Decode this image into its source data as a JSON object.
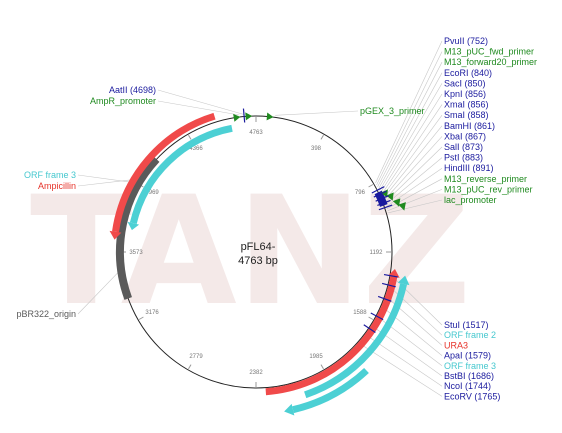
{
  "watermark": "TANZ",
  "plasmid": {
    "name": "pFL64-",
    "size": "4763 bp"
  },
  "colors": {
    "blue": "#1a1a9e",
    "green": "#1f8a1f",
    "red": "#e6332a",
    "cyan": "#46c8cf",
    "gray": "#5a5a5a",
    "arrow_red": "#f04a4a",
    "arrow_cyan": "#4cd0d4"
  },
  "ticks": [
    "4763",
    "398",
    "796",
    "1192",
    "1588",
    "1985",
    "2382",
    "2779",
    "3176",
    "3573",
    "3969",
    "4366"
  ],
  "left_labels": [
    {
      "text": "AatII (4698)",
      "color": "blue"
    },
    {
      "text": "AmpR_promoter",
      "color": "green"
    },
    {
      "text": "ORF frame 3",
      "color": "cyan"
    },
    {
      "text": "Ampicillin",
      "color": "red"
    },
    {
      "text": "pBR322_origin",
      "color": "gray"
    }
  ],
  "top_label": {
    "text": "pGEX_3_primer",
    "color": "green"
  },
  "right_top_labels": [
    {
      "text": "PvuII (752)",
      "color": "blue"
    },
    {
      "text": "M13_pUC_fwd_primer",
      "color": "green"
    },
    {
      "text": "M13_forward20_primer",
      "color": "green"
    },
    {
      "text": "EcoRI (840)",
      "color": "blue"
    },
    {
      "text": "SacI (850)",
      "color": "blue"
    },
    {
      "text": "KpnI (856)",
      "color": "blue"
    },
    {
      "text": "XmaI (856)",
      "color": "blue"
    },
    {
      "text": "SmaI (858)",
      "color": "blue"
    },
    {
      "text": "BamHI (861)",
      "color": "blue"
    },
    {
      "text": "XbaI (867)",
      "color": "blue"
    },
    {
      "text": "SalI (873)",
      "color": "blue"
    },
    {
      "text": "PstI (883)",
      "color": "blue"
    },
    {
      "text": "HindIII (891)",
      "color": "blue"
    },
    {
      "text": "M13_reverse_primer",
      "color": "green"
    },
    {
      "text": "M13_pUC_rev_primer",
      "color": "green"
    },
    {
      "text": "lac_promoter",
      "color": "green"
    }
  ],
  "right_bottom_labels": [
    {
      "text": "StuI (1517)",
      "color": "blue"
    },
    {
      "text": "ORF frame 2",
      "color": "cyan"
    },
    {
      "text": "URA3",
      "color": "red"
    },
    {
      "text": "ApaI (1579)",
      "color": "blue"
    },
    {
      "text": "ORF frame 3",
      "color": "cyan"
    },
    {
      "text": "BstBI (1686)",
      "color": "blue"
    },
    {
      "text": "NcoI (1744)",
      "color": "blue"
    },
    {
      "text": "EcoRV (1765)",
      "color": "blue"
    }
  ]
}
